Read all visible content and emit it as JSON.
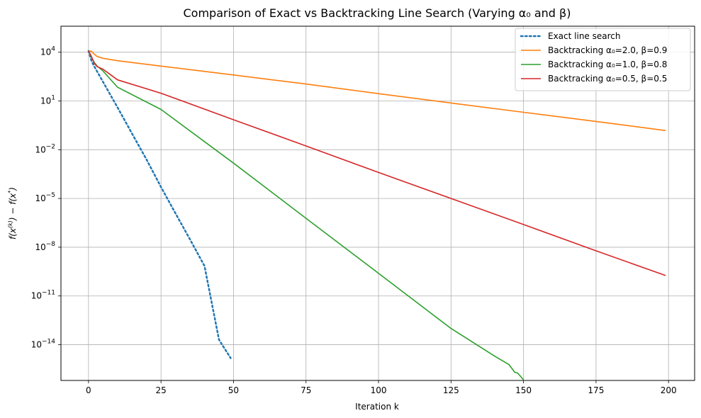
{
  "chart_data": {
    "type": "line",
    "title": "Comparison of Exact vs Backtracking Line Search (Varying α₀ and β)",
    "xlabel": "Iteration k",
    "ylabel": "f(x^(k)) − f(x*)",
    "yscale": "log",
    "xlim": [
      -9.5,
      209
    ],
    "ylim_log10": [
      -16.2,
      5.6
    ],
    "grid": true,
    "legend_position": "top-right",
    "x_ticks": [
      0,
      25,
      50,
      75,
      100,
      125,
      150,
      175,
      200
    ],
    "x_tick_labels": [
      "0",
      "25",
      "50",
      "75",
      "100",
      "125",
      "150",
      "175",
      "200"
    ],
    "y_ticks_log10": [
      4,
      1,
      -2,
      -5,
      -8,
      -11,
      -14
    ],
    "y_tick_labels": [
      {
        "base": "10",
        "exp": "4"
      },
      {
        "base": "10",
        "exp": "1"
      },
      {
        "base": "10",
        "exp": "−2"
      },
      {
        "base": "10",
        "exp": "−5"
      },
      {
        "base": "10",
        "exp": "−8"
      },
      {
        "base": "10",
        "exp": "−11"
      },
      {
        "base": "10",
        "exp": "−14"
      }
    ],
    "series": [
      {
        "name": "Exact line search",
        "color": "#1f77b4",
        "style": "dotted",
        "x": [
          0,
          1,
          2,
          5,
          10,
          15,
          20,
          25,
          30,
          35,
          40,
          45,
          49
        ],
        "y": [
          12000,
          3000,
          1300,
          150,
          4,
          0.1,
          0.0025,
          5e-05,
          1.2e-06,
          3e-08,
          7e-10,
          2e-14,
          1.5e-15
        ]
      },
      {
        "name": "Backtracking α₀=2.0, β=0.9",
        "color": "#ff7f0e",
        "style": "solid",
        "x": [
          0,
          1,
          2,
          3,
          5,
          10,
          25,
          50,
          75,
          100,
          125,
          150,
          175,
          199
        ],
        "y": [
          12000,
          11500,
          7500,
          5500,
          4200,
          3000,
          1400,
          400,
          110,
          28,
          7.5,
          2,
          0.55,
          0.15
        ]
      },
      {
        "name": "Backtracking α₀=1.0, β=0.8",
        "color": "#2ca02c",
        "style": "solid",
        "x": [
          0,
          1,
          2,
          3,
          5,
          10,
          25,
          50,
          75,
          100,
          125,
          140,
          145,
          147,
          148,
          150
        ],
        "y": [
          12000,
          5000,
          2300,
          1400,
          700,
          70,
          3,
          0.0015,
          6e-07,
          2.5e-10,
          1e-13,
          2e-15,
          6e-16,
          2e-16,
          1.8e-16,
          7e-17
        ]
      },
      {
        "name": "Backtracking α₀=0.5, β=0.5",
        "color": "#d62728",
        "style": "solid",
        "x": [
          0,
          1,
          2,
          3,
          5,
          10,
          25,
          50,
          75,
          100,
          125,
          150,
          175,
          199
        ],
        "y": [
          12000,
          5500,
          2000,
          1300,
          900,
          200,
          30,
          0.7,
          0.017,
          0.0004,
          1e-05,
          2.5e-07,
          6e-09,
          1.8e-10
        ]
      }
    ]
  }
}
